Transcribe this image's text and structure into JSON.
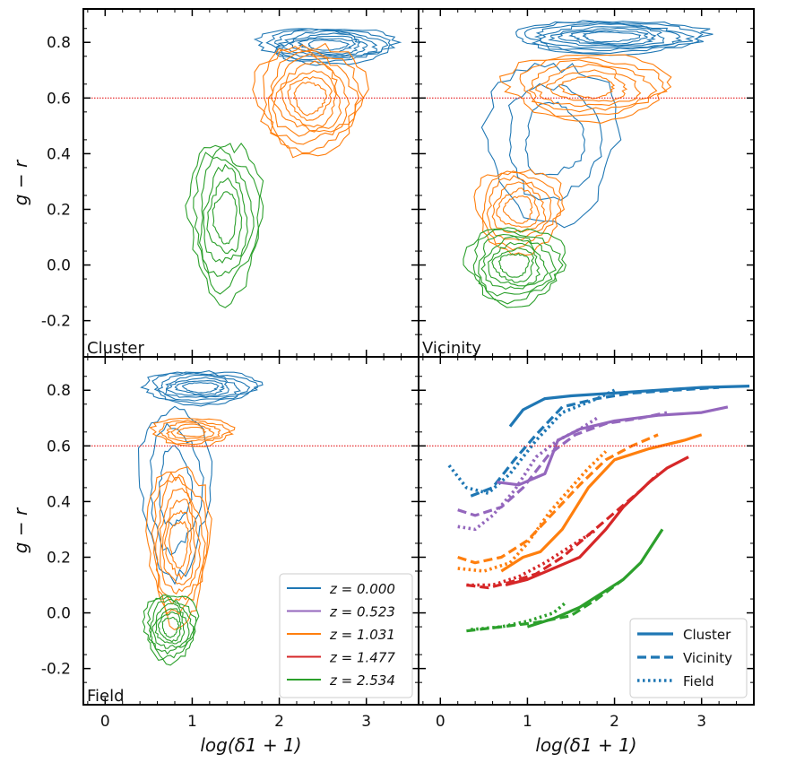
{
  "chart_data": {
    "type": "line",
    "layout": "2x2 panels, shared axes",
    "xlabel": "log(δ1 + 1)",
    "ylabel": "g − r",
    "xlim": [
      -0.25,
      3.6
    ],
    "ylim": [
      -0.33,
      0.92
    ],
    "x_ticks": [
      "0",
      "1",
      "2",
      "3"
    ],
    "y_ticks": [
      "-0.2",
      "0.0",
      "0.2",
      "0.4",
      "0.6",
      "0.8"
    ],
    "reference_line": {
      "y": 0.6,
      "color": "#e41a1c",
      "style": "dotted"
    },
    "colors": {
      "z0": "#1f77b4",
      "z1": "#9467bd",
      "z2": "#ff7f0e",
      "z3": "#d62728",
      "z4": "#2ca02c"
    },
    "legend_redshift": {
      "placement": "lower-right of Field panel",
      "entries": [
        {
          "label": "z = 0.000",
          "color": "#1f77b4"
        },
        {
          "label": "z = 0.523",
          "color": "#9467bd"
        },
        {
          "label": "z = 1.031",
          "color": "#ff7f0e"
        },
        {
          "label": "z = 1.477",
          "color": "#d62728"
        },
        {
          "label": "z = 2.534",
          "color": "#2ca02c"
        }
      ]
    },
    "legend_environment": {
      "placement": "lower-right of median panel",
      "entries": [
        {
          "label": "Cluster",
          "style": "solid"
        },
        {
          "label": "Vicinity",
          "style": "dashed"
        },
        {
          "label": "Field",
          "style": "dotted"
        }
      ]
    },
    "panels": [
      {
        "name": "Cluster",
        "kind": "contour",
        "blobs": [
          {
            "color": "#1f77b4",
            "cx": 2.55,
            "cy": 0.79,
            "rx": 0.78,
            "ry": 0.065,
            "levels": 8
          },
          {
            "color": "#ff7f0e",
            "cx": 2.35,
            "cy": 0.6,
            "rx": 0.62,
            "ry": 0.2,
            "levels": 8
          },
          {
            "color": "#2ca02c",
            "cx": 1.38,
            "cy": 0.17,
            "rx": 0.42,
            "ry": 0.28,
            "levels": 6
          }
        ]
      },
      {
        "name": "Vicinity",
        "kind": "contour",
        "blobs": [
          {
            "color": "#1f77b4",
            "cx": 1.95,
            "cy": 0.82,
            "rx": 1.1,
            "ry": 0.06,
            "levels": 8
          },
          {
            "color": "#1f77b4",
            "cx": 1.3,
            "cy": 0.45,
            "rx": 0.75,
            "ry": 0.28,
            "levels": 3
          },
          {
            "color": "#ff7f0e",
            "cx": 1.7,
            "cy": 0.64,
            "rx": 0.95,
            "ry": 0.12,
            "levels": 6
          },
          {
            "color": "#ff7f0e",
            "cx": 0.9,
            "cy": 0.2,
            "rx": 0.5,
            "ry": 0.15,
            "levels": 6
          },
          {
            "color": "#2ca02c",
            "cx": 0.85,
            "cy": 0.0,
            "rx": 0.55,
            "ry": 0.14,
            "levels": 7
          }
        ]
      },
      {
        "name": "Field",
        "kind": "contour",
        "blobs": [
          {
            "color": "#1f77b4",
            "cx": 1.1,
            "cy": 0.81,
            "rx": 0.65,
            "ry": 0.06,
            "levels": 7
          },
          {
            "color": "#1f77b4",
            "cx": 0.8,
            "cy": 0.45,
            "rx": 0.4,
            "ry": 0.3,
            "levels": 3
          },
          {
            "color": "#ff7f0e",
            "cx": 1.0,
            "cy": 0.65,
            "rx": 0.45,
            "ry": 0.05,
            "levels": 5
          },
          {
            "color": "#ff7f0e",
            "cx": 0.85,
            "cy": 0.25,
            "rx": 0.35,
            "ry": 0.28,
            "levels": 7
          },
          {
            "color": "#2ca02c",
            "cx": 0.75,
            "cy": -0.05,
            "rx": 0.3,
            "ry": 0.12,
            "levels": 7
          }
        ]
      },
      {
        "name": "",
        "kind": "lines",
        "series": [
          {
            "color": "#1f77b4",
            "style": "solid",
            "x": [
              0.8,
              0.95,
              1.2,
              1.5,
              2.0,
              2.5,
              3.0,
              3.55
            ],
            "y": [
              0.67,
              0.73,
              0.77,
              0.78,
              0.79,
              0.8,
              0.81,
              0.815
            ]
          },
          {
            "color": "#1f77b4",
            "style": "dashed",
            "x": [
              0.35,
              0.6,
              0.85,
              1.1,
              1.4,
              1.8,
              2.2,
              2.7,
              3.2
            ],
            "y": [
              0.42,
              0.45,
              0.55,
              0.64,
              0.74,
              0.77,
              0.79,
              0.8,
              0.81
            ]
          },
          {
            "color": "#1f77b4",
            "style": "dotted",
            "x": [
              0.1,
              0.3,
              0.55,
              0.8,
              1.1,
              1.4,
              1.8,
              2.0
            ],
            "y": [
              0.53,
              0.45,
              0.43,
              0.5,
              0.62,
              0.72,
              0.77,
              0.8
            ]
          },
          {
            "color": "#9467bd",
            "style": "solid",
            "x": [
              0.65,
              0.9,
              1.2,
              1.35,
              1.6,
              2.0,
              2.5,
              3.0,
              3.3
            ],
            "y": [
              0.47,
              0.46,
              0.5,
              0.62,
              0.66,
              0.69,
              0.71,
              0.72,
              0.74
            ]
          },
          {
            "color": "#9467bd",
            "style": "dashed",
            "x": [
              0.2,
              0.4,
              0.7,
              0.95,
              1.25,
              1.55,
              1.9,
              2.3,
              2.6
            ],
            "y": [
              0.37,
              0.35,
              0.38,
              0.45,
              0.57,
              0.64,
              0.68,
              0.7,
              0.72
            ]
          },
          {
            "color": "#9467bd",
            "style": "dotted",
            "x": [
              0.2,
              0.4,
              0.6,
              0.85,
              1.1,
              1.35,
              1.6,
              1.8
            ],
            "y": [
              0.31,
              0.3,
              0.35,
              0.44,
              0.56,
              0.62,
              0.66,
              0.7
            ]
          },
          {
            "color": "#ff7f0e",
            "style": "solid",
            "x": [
              0.7,
              0.95,
              1.15,
              1.4,
              1.7,
              2.0,
              2.4,
              2.8,
              3.0
            ],
            "y": [
              0.15,
              0.2,
              0.22,
              0.3,
              0.45,
              0.55,
              0.59,
              0.62,
              0.64
            ]
          },
          {
            "color": "#ff7f0e",
            "style": "dashed",
            "x": [
              0.2,
              0.4,
              0.7,
              1.0,
              1.3,
              1.6,
              1.9,
              2.2,
              2.5
            ],
            "y": [
              0.2,
              0.18,
              0.2,
              0.26,
              0.36,
              0.46,
              0.55,
              0.6,
              0.64
            ]
          },
          {
            "color": "#ff7f0e",
            "style": "dotted",
            "x": [
              0.2,
              0.5,
              0.8,
              1.0,
              1.25,
              1.5,
              1.7,
              1.9
            ],
            "y": [
              0.16,
              0.15,
              0.18,
              0.25,
              0.36,
              0.45,
              0.52,
              0.58
            ]
          },
          {
            "color": "#d62728",
            "style": "solid",
            "x": [
              0.75,
              1.0,
              1.3,
              1.6,
              1.9,
              2.1,
              2.4,
              2.6,
              2.85
            ],
            "y": [
              0.1,
              0.12,
              0.16,
              0.2,
              0.3,
              0.38,
              0.47,
              0.52,
              0.56
            ]
          },
          {
            "color": "#d62728",
            "style": "dashed",
            "x": [
              0.3,
              0.55,
              0.8,
              1.1,
              1.4,
              1.7,
              2.0,
              2.3,
              2.5
            ],
            "y": [
              0.1,
              0.09,
              0.11,
              0.14,
              0.2,
              0.28,
              0.36,
              0.44,
              0.5
            ]
          },
          {
            "color": "#d62728",
            "style": "dotted",
            "x": [
              0.3,
              0.6,
              0.9,
              1.2,
              1.5,
              1.8
            ],
            "y": [
              0.1,
              0.1,
              0.13,
              0.18,
              0.24,
              0.3
            ]
          },
          {
            "color": "#2ca02c",
            "style": "solid",
            "x": [
              1.0,
              1.3,
              1.6,
              1.9,
              2.1,
              2.3,
              2.55
            ],
            "y": [
              -0.05,
              -0.02,
              0.02,
              0.08,
              0.12,
              0.18,
              0.3
            ]
          },
          {
            "color": "#2ca02c",
            "style": "dashed",
            "x": [
              0.3,
              0.7,
              1.1,
              1.5,
              1.8,
              2.1
            ],
            "y": [
              -0.065,
              -0.05,
              -0.035,
              -0.01,
              0.05,
              0.12
            ]
          },
          {
            "color": "#2ca02c",
            "style": "dotted",
            "x": [
              0.35,
              0.7,
              1.0,
              1.3,
              1.45
            ],
            "y": [
              -0.06,
              -0.05,
              -0.03,
              0.0,
              0.04
            ]
          }
        ]
      }
    ]
  }
}
